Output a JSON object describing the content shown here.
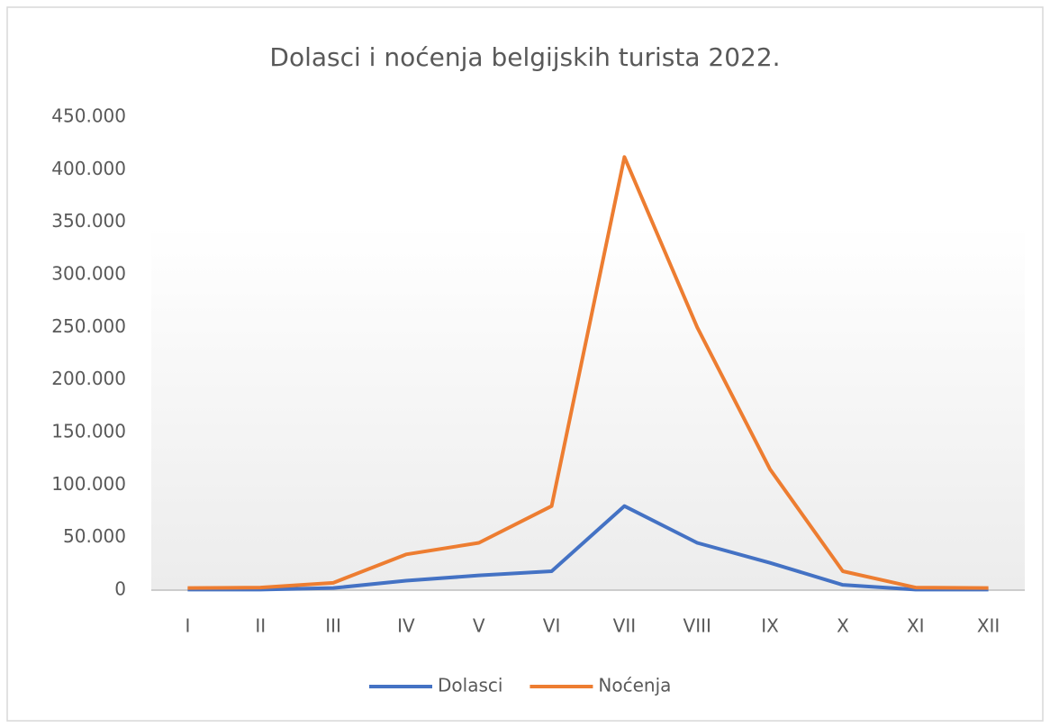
{
  "chart_data": {
    "type": "line",
    "title": "Dolasci i noćenja belgijskih turista 2022.",
    "categories": [
      "I",
      "II",
      "III",
      "IV",
      "V",
      "VI",
      "VII",
      "VIII",
      "IX",
      "X",
      "XI",
      "XII"
    ],
    "series": [
      {
        "name": "Dolasci",
        "color": "#4472c4",
        "values": [
          500,
          500,
          2000,
          9000,
          14000,
          18000,
          80000,
          45000,
          26000,
          5000,
          500,
          500
        ]
      },
      {
        "name": "Noćenja",
        "color": "#ed7d31",
        "values": [
          2000,
          2500,
          7000,
          34000,
          45000,
          80000,
          412000,
          250000,
          115000,
          18000,
          2500,
          2000
        ]
      }
    ],
    "ylim": [
      0,
      450000
    ],
    "yticks": [
      0,
      {
        "value": 50000,
        "label": "50.000"
      },
      {
        "value": 100000,
        "label": "100.000"
      },
      {
        "value": 150000,
        "label": "150.000"
      },
      {
        "value": 200000,
        "label": "200.000"
      },
      {
        "value": 250000,
        "label": "250.000"
      },
      {
        "value": 300000,
        "label": "300.000"
      },
      {
        "value": 350000,
        "label": "350.000"
      },
      {
        "value": 400000,
        "label": "400.000"
      },
      {
        "value": 450000,
        "label": "450.000"
      }
    ],
    "grid": false,
    "legend": "bottom"
  }
}
